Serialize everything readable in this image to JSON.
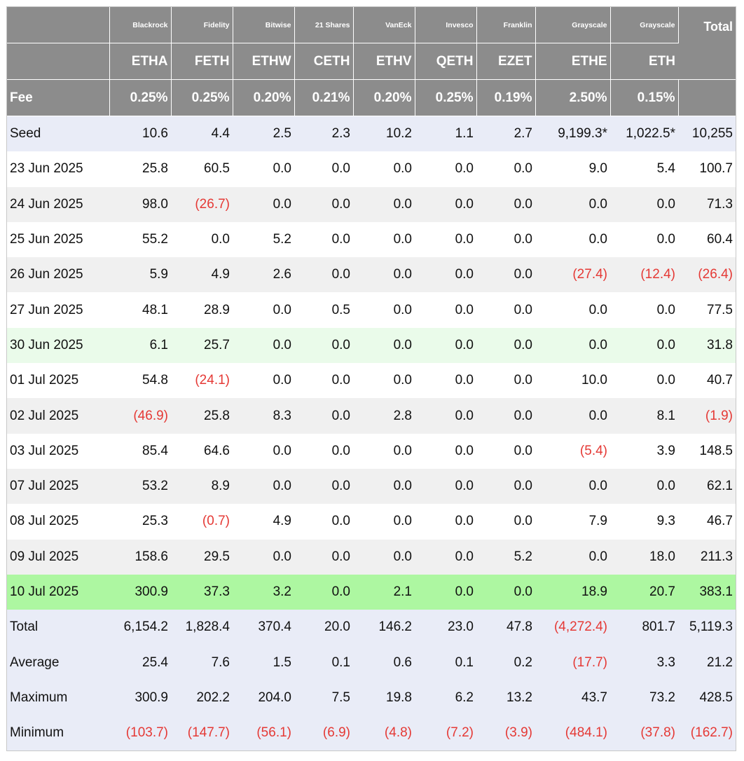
{
  "header": {
    "providers": [
      "Blackrock",
      "Fidelity",
      "Bitwise",
      "21 Shares",
      "VanEck",
      "Invesco",
      "Franklin",
      "Grayscale",
      "Grayscale"
    ],
    "total_label": "Total",
    "tickers": [
      "ETHA",
      "FETH",
      "ETHW",
      "CETH",
      "ETHV",
      "QETH",
      "EZET",
      "ETHE",
      "ETH"
    ],
    "fee_label": "Fee",
    "fees": [
      "0.25%",
      "0.25%",
      "0.20%",
      "0.21%",
      "0.20%",
      "0.25%",
      "0.19%",
      "2.50%",
      "0.15%"
    ]
  },
  "rows": [
    {
      "label": "Seed",
      "values": [
        "10.6",
        "4.4",
        "2.5",
        "2.3",
        "10.2",
        "1.1",
        "2.7",
        "9,199.3*",
        "1,022.5*",
        "10,255"
      ]
    },
    {
      "label": "23 Jun 2025",
      "values": [
        "25.8",
        "60.5",
        "0.0",
        "0.0",
        "0.0",
        "0.0",
        "0.0",
        "9.0",
        "5.4",
        "100.7"
      ]
    },
    {
      "label": "24 Jun 2025",
      "values": [
        "98.0",
        "(26.7)",
        "0.0",
        "0.0",
        "0.0",
        "0.0",
        "0.0",
        "0.0",
        "0.0",
        "71.3"
      ]
    },
    {
      "label": "25 Jun 2025",
      "values": [
        "55.2",
        "0.0",
        "5.2",
        "0.0",
        "0.0",
        "0.0",
        "0.0",
        "0.0",
        "0.0",
        "60.4"
      ]
    },
    {
      "label": "26 Jun 2025",
      "values": [
        "5.9",
        "4.9",
        "2.6",
        "0.0",
        "0.0",
        "0.0",
        "0.0",
        "(27.4)",
        "(12.4)",
        "(26.4)"
      ]
    },
    {
      "label": "27 Jun 2025",
      "values": [
        "48.1",
        "28.9",
        "0.0",
        "0.5",
        "0.0",
        "0.0",
        "0.0",
        "0.0",
        "0.0",
        "77.5"
      ]
    },
    {
      "label": "30 Jun 2025",
      "values": [
        "6.1",
        "25.7",
        "0.0",
        "0.0",
        "0.0",
        "0.0",
        "0.0",
        "0.0",
        "0.0",
        "31.8"
      ]
    },
    {
      "label": "01 Jul 2025",
      "values": [
        "54.8",
        "(24.1)",
        "0.0",
        "0.0",
        "0.0",
        "0.0",
        "0.0",
        "10.0",
        "0.0",
        "40.7"
      ]
    },
    {
      "label": "02 Jul 2025",
      "values": [
        "(46.9)",
        "25.8",
        "8.3",
        "0.0",
        "2.8",
        "0.0",
        "0.0",
        "0.0",
        "8.1",
        "(1.9)"
      ]
    },
    {
      "label": "03 Jul 2025",
      "values": [
        "85.4",
        "64.6",
        "0.0",
        "0.0",
        "0.0",
        "0.0",
        "0.0",
        "(5.4)",
        "3.9",
        "148.5"
      ]
    },
    {
      "label": "07 Jul 2025",
      "values": [
        "53.2",
        "8.9",
        "0.0",
        "0.0",
        "0.0",
        "0.0",
        "0.0",
        "0.0",
        "0.0",
        "62.1"
      ]
    },
    {
      "label": "08 Jul 2025",
      "values": [
        "25.3",
        "(0.7)",
        "4.9",
        "0.0",
        "0.0",
        "0.0",
        "0.0",
        "7.9",
        "9.3",
        "46.7"
      ]
    },
    {
      "label": "09 Jul 2025",
      "values": [
        "158.6",
        "29.5",
        "0.0",
        "0.0",
        "0.0",
        "0.0",
        "5.2",
        "0.0",
        "18.0",
        "211.3"
      ]
    },
    {
      "label": "10 Jul 2025",
      "values": [
        "300.9",
        "37.3",
        "3.2",
        "0.0",
        "2.1",
        "0.0",
        "0.0",
        "18.9",
        "20.7",
        "383.1"
      ]
    },
    {
      "label": "Total",
      "values": [
        "6,154.2",
        "1,828.4",
        "370.4",
        "20.0",
        "146.2",
        "23.0",
        "47.8",
        "(4,272.4)",
        "801.7",
        "5,119.3"
      ]
    },
    {
      "label": "Average",
      "values": [
        "25.4",
        "7.6",
        "1.5",
        "0.1",
        "0.6",
        "0.1",
        "0.2",
        "(17.7)",
        "3.3",
        "21.2"
      ]
    },
    {
      "label": "Maximum",
      "values": [
        "300.9",
        "202.2",
        "204.0",
        "7.5",
        "19.8",
        "6.2",
        "13.2",
        "43.7",
        "73.2",
        "428.5"
      ]
    },
    {
      "label": "Minimum",
      "values": [
        "(103.7)",
        "(147.7)",
        "(56.1)",
        "(6.9)",
        "(4.8)",
        "(7.2)",
        "(3.9)",
        "(484.1)",
        "(37.8)",
        "(162.7)"
      ]
    }
  ],
  "colors": {
    "header_bg": "#8c8c8c",
    "negative": "#e53935",
    "summary_bg": "#e9ecf7",
    "highlight_light": "#eafbea",
    "highlight_strong": "#adf7a1",
    "stripe": "#f0f0f0"
  }
}
